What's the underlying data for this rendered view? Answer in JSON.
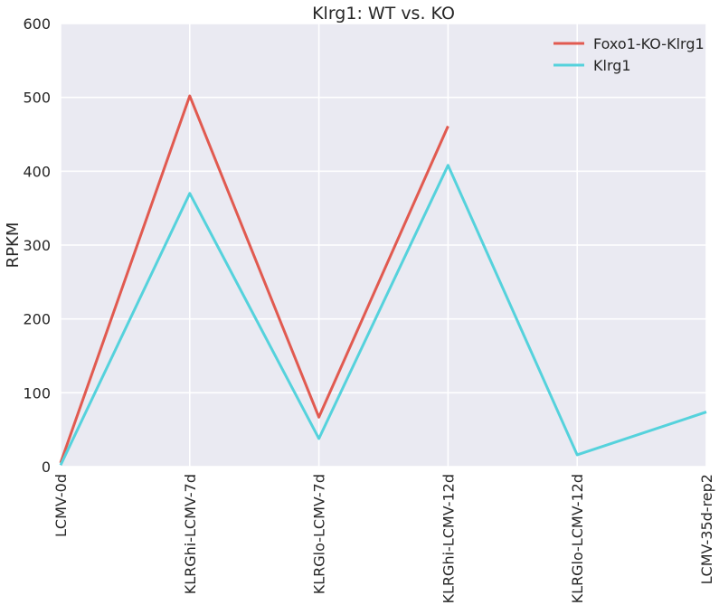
{
  "chart_data": {
    "type": "line",
    "title": "Klrg1: WT vs. KO",
    "xlabel": "",
    "ylabel": "RPKM",
    "categories": [
      "LCMV-0d",
      "KLRGhi-LCMV-7d",
      "KLRGlo-LCMV-7d",
      "KLRGhi-LCMV-12d",
      "KLRGlo-LCMV-12d",
      "LCMV-35d-rep2"
    ],
    "ylim": [
      0,
      600
    ],
    "yticks": [
      "0",
      "100",
      "200",
      "300",
      "400",
      "500",
      "600"
    ],
    "grid": true,
    "legend_position": "top-right",
    "series": [
      {
        "name": "Foxo1-KO-Klrg1",
        "color": "#e15a50",
        "values": [
          5,
          502,
          67,
          461,
          null,
          null
        ]
      },
      {
        "name": "Klrg1",
        "color": "#55d2dc",
        "values": [
          2,
          370,
          38,
          408,
          16,
          74
        ]
      }
    ]
  }
}
